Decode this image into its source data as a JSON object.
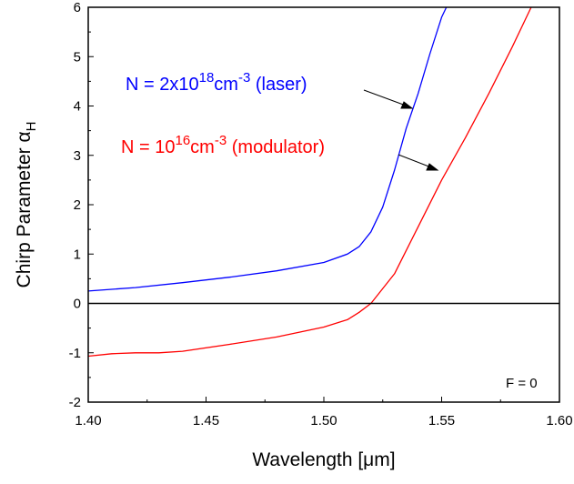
{
  "chart_data": {
    "type": "line",
    "xlabel": "Wavelength [μm]",
    "ylabel": "Chirp Parameter α",
    "ylabel_subscript": "H",
    "xlim": [
      1.4,
      1.6
    ],
    "ylim": [
      -2,
      6
    ],
    "xticks": [
      "1.40",
      "1.45",
      "1.50",
      "1.55",
      "1.60"
    ],
    "yticks": [
      "-2",
      "-1",
      "0",
      "1",
      "2",
      "3",
      "4",
      "5",
      "6"
    ],
    "grid": false,
    "zero_line": true,
    "series": [
      {
        "color": "#0000ff",
        "x": [
          1.4,
          1.42,
          1.44,
          1.46,
          1.48,
          1.5,
          1.51,
          1.515,
          1.52,
          1.525,
          1.53,
          1.535,
          1.54,
          1.545,
          1.55,
          1.552
        ],
        "y": [
          0.25,
          0.32,
          0.42,
          0.53,
          0.66,
          0.83,
          1.0,
          1.15,
          1.45,
          1.95,
          2.7,
          3.55,
          4.25,
          5.05,
          5.8,
          6.0
        ]
      },
      {
        "color": "#ff0000",
        "x": [
          1.4,
          1.41,
          1.42,
          1.43,
          1.44,
          1.46,
          1.48,
          1.5,
          1.51,
          1.515,
          1.52,
          1.53,
          1.54,
          1.55,
          1.56,
          1.57,
          1.58,
          1.588
        ],
        "y": [
          -1.07,
          -1.02,
          -1.0,
          -1.0,
          -0.97,
          -0.83,
          -0.68,
          -0.48,
          -0.33,
          -0.18,
          0.0,
          0.6,
          1.55,
          2.5,
          3.35,
          4.25,
          5.2,
          6.0
        ]
      }
    ],
    "annotations": [
      {
        "color": "#0000ff",
        "text_main": "N = 2x10",
        "text_sup1": "18",
        "text_mid": "cm",
        "text_sup2": "-3",
        "text_tail": " (laser)"
      },
      {
        "color": "#ff0000",
        "text_main": "N = 10",
        "text_sup1": "16",
        "text_mid": "cm",
        "text_sup2": "-3",
        "text_tail": " (modulator)"
      }
    ],
    "corner_note": "F = 0"
  }
}
